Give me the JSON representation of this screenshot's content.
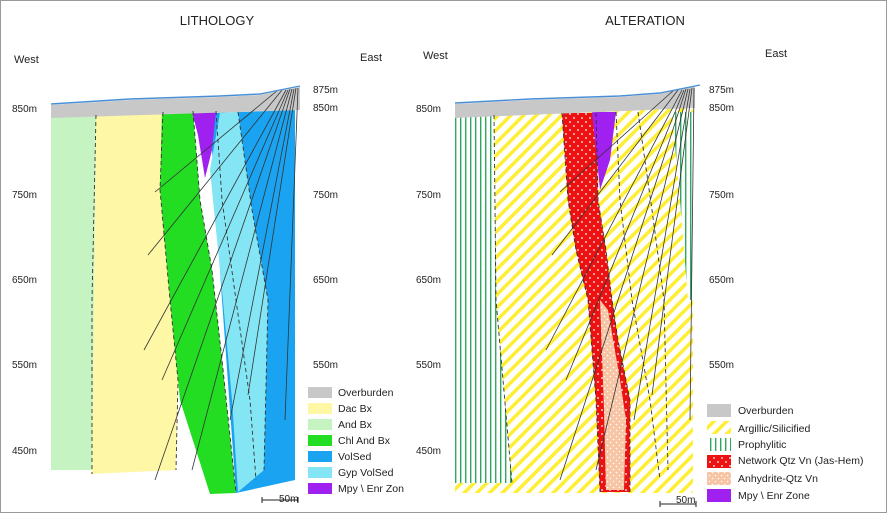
{
  "colors": {
    "overburden": "#c8c8c8",
    "dac_bx": "#fdf7a6",
    "and_bx": "#c6f3c2",
    "chl_and_bx": "#22dd22",
    "volsed": "#1aa3f0",
    "gyp_volsed": "#84e6f4",
    "mpy_enr": "#a020f0",
    "argillic_stripe": "#ffee33",
    "prophylitic_stripe": "#2fa860",
    "network_qtz": "#ee1111",
    "anhydrite_qtz": "#f7c4a4",
    "topo": "#4a8fd6"
  },
  "lithology": {
    "title": "LITHOLOGY",
    "west": "West",
    "east": "East",
    "left_ticks": [
      "850m",
      "750m",
      "650m",
      "550m",
      "450m"
    ],
    "right_ticks": [
      "875m",
      "850m",
      "750m",
      "650m",
      "550m"
    ],
    "scale": "50m",
    "legend": [
      {
        "label": "Overburden",
        "swatch": "overburden"
      },
      {
        "label": "Dac Bx",
        "swatch": "dac_bx"
      },
      {
        "label": "And Bx",
        "swatch": "and_bx"
      },
      {
        "label": "Chl And Bx",
        "swatch": "chl_and_bx"
      },
      {
        "label": "VolSed",
        "swatch": "volsed"
      },
      {
        "label": "Gyp VolSed",
        "swatch": "gyp_volsed"
      },
      {
        "label": "Mpy \\ Enr Zon",
        "swatch": "mpy_enr"
      }
    ]
  },
  "alteration": {
    "title": "ALTERATION",
    "west": "West",
    "east": "East",
    "left_ticks": [
      "850m",
      "750m",
      "650m",
      "550m",
      "450m"
    ],
    "right_ticks": [
      "875m",
      "850m",
      "750m",
      "650m",
      "550m"
    ],
    "scale": "50m",
    "legend": [
      {
        "label": "Overburden",
        "swatch": "overburden"
      },
      {
        "label": "Argillic/Silicified",
        "swatch": "argillic"
      },
      {
        "label": "Prophylitic",
        "swatch": "prophylitic"
      },
      {
        "label": "Network Qtz Vn (Jas-Hem)",
        "swatch": "network"
      },
      {
        "label": "Anhydrite-Qtz Vn",
        "swatch": "anhydrite"
      },
      {
        "label": "Mpy \\ Enr Zone",
        "swatch": "mpy"
      }
    ]
  }
}
